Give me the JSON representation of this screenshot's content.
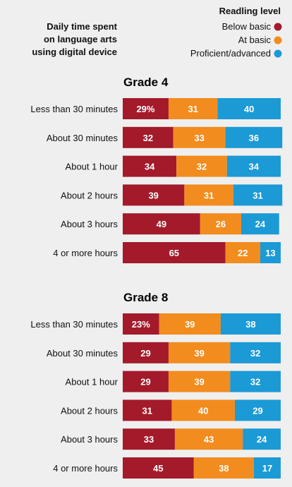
{
  "header": {
    "row_title_lines": [
      "Daily time spent",
      "on language arts",
      "using digital device"
    ],
    "legend_title": "Readling level"
  },
  "colors": {
    "below_basic": "#a31a2b",
    "at_basic": "#f28c1e",
    "proficient": "#1b9ad6",
    "background": "#efefef"
  },
  "chart_data": [
    {
      "type": "bar",
      "stacked": true,
      "orientation": "horizontal",
      "title": "Grade 4",
      "categories": [
        "Less than 30 minutes",
        "About 30 minutes",
        "About 1 hour",
        "About 2 hours",
        "About 3 hours",
        "4 or more hours"
      ],
      "series": [
        {
          "name": "Below basic",
          "values": [
            29,
            32,
            34,
            39,
            49,
            65
          ]
        },
        {
          "name": "At basic",
          "values": [
            31,
            33,
            32,
            31,
            26,
            22
          ]
        },
        {
          "name": "Proficient/advanced",
          "values": [
            40,
            36,
            34,
            31,
            24,
            13
          ]
        }
      ],
      "first_label_suffix": "%",
      "xlim": [
        0,
        100
      ],
      "legend": "top-right"
    },
    {
      "type": "bar",
      "stacked": true,
      "orientation": "horizontal",
      "title": "Grade 8",
      "categories": [
        "Less than 30 minutes",
        "About 30 minutes",
        "About 1 hour",
        "About 2 hours",
        "About 3 hours",
        "4 or more hours"
      ],
      "series": [
        {
          "name": "Below basic",
          "values": [
            23,
            29,
            29,
            31,
            33,
            45
          ]
        },
        {
          "name": "At basic",
          "values": [
            39,
            39,
            39,
            40,
            43,
            38
          ]
        },
        {
          "name": "Proficient/advanced",
          "values": [
            38,
            32,
            32,
            29,
            24,
            17
          ]
        }
      ],
      "first_label_suffix": "%",
      "xlim": [
        0,
        100
      ],
      "legend": "top-right"
    }
  ]
}
